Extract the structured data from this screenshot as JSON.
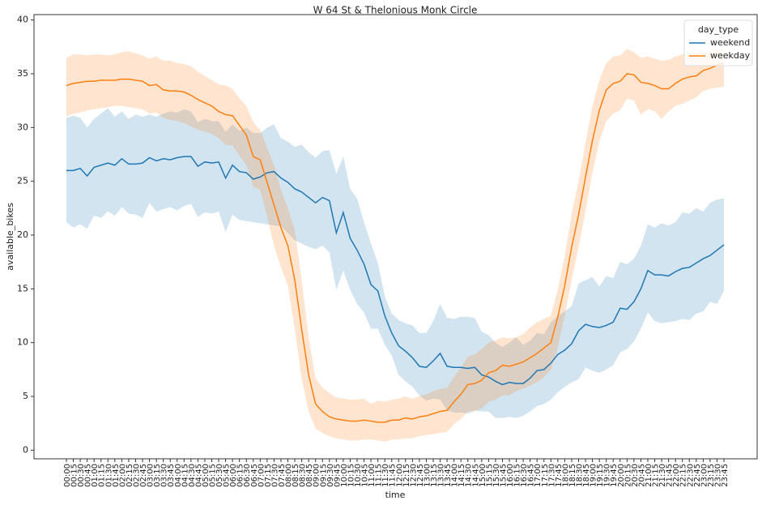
{
  "chart_data": {
    "type": "line",
    "title": "W 64 St & Thelonious Monk Circle",
    "xlabel": "time",
    "ylabel": "available_bikes",
    "legend_title": "day_type",
    "legend_position": "upper right",
    "categories": [
      "00:00",
      "00:15",
      "00:30",
      "00:45",
      "01:00",
      "01:15",
      "01:30",
      "01:45",
      "02:00",
      "02:15",
      "02:30",
      "02:45",
      "03:00",
      "03:15",
      "03:30",
      "03:45",
      "04:00",
      "04:15",
      "04:30",
      "04:45",
      "05:00",
      "05:15",
      "05:30",
      "05:45",
      "06:00",
      "06:15",
      "06:30",
      "06:45",
      "07:00",
      "07:15",
      "07:30",
      "07:45",
      "08:00",
      "08:15",
      "08:30",
      "08:45",
      "09:00",
      "09:15",
      "09:30",
      "09:45",
      "10:00",
      "10:15",
      "10:30",
      "10:45",
      "11:00",
      "11:15",
      "11:30",
      "11:45",
      "12:00",
      "12:15",
      "12:30",
      "12:45",
      "13:00",
      "13:15",
      "13:30",
      "13:45",
      "14:00",
      "14:15",
      "14:30",
      "14:45",
      "15:00",
      "15:15",
      "15:30",
      "15:45",
      "16:00",
      "16:15",
      "16:30",
      "16:45",
      "17:00",
      "17:15",
      "17:30",
      "17:45",
      "18:00",
      "18:15",
      "18:30",
      "18:45",
      "19:00",
      "19:15",
      "19:30",
      "19:45",
      "20:00",
      "20:15",
      "20:30",
      "20:45",
      "21:00",
      "21:15",
      "21:30",
      "21:45",
      "22:00",
      "22:15",
      "22:30",
      "22:45",
      "23:00",
      "23:15",
      "23:30",
      "23:45"
    ],
    "ylim": [
      -0.8,
      40.5
    ],
    "yticks": [
      0,
      5,
      10,
      15,
      20,
      25,
      30,
      35,
      40
    ],
    "series": [
      {
        "name": "weekend",
        "color": "#1f77b4",
        "values": [
          26.0,
          26.0,
          26.2,
          25.5,
          26.3,
          26.5,
          26.7,
          26.5,
          27.1,
          26.6,
          26.6,
          26.7,
          27.2,
          26.9,
          27.1,
          27.0,
          27.2,
          27.3,
          27.3,
          26.4,
          26.8,
          26.7,
          26.8,
          25.3,
          26.5,
          25.9,
          25.8,
          25.2,
          25.4,
          25.8,
          25.9,
          25.3,
          24.9,
          24.3,
          24.0,
          23.5,
          23.0,
          23.5,
          23.2,
          20.2,
          22.1,
          19.7,
          18.6,
          17.3,
          15.4,
          14.8,
          12.5,
          10.9,
          9.7,
          9.2,
          8.6,
          7.8,
          7.7,
          8.3,
          9.0,
          7.8,
          7.7,
          7.7,
          7.6,
          7.7,
          7.0,
          6.8,
          6.4,
          6.1,
          6.3,
          6.2,
          6.2,
          6.7,
          7.4,
          7.5,
          8.1,
          8.9,
          9.3,
          9.9,
          11.1,
          11.7,
          11.5,
          11.4,
          11.6,
          11.9,
          13.2,
          13.1,
          13.8,
          15.0,
          16.7,
          16.3,
          16.3,
          16.2,
          16.6,
          16.9,
          17.0,
          17.4,
          17.8,
          18.1,
          18.6,
          19.1
        ],
        "upper": [
          30.9,
          31.1,
          30.9,
          30.0,
          30.8,
          31.3,
          31.8,
          31.0,
          31.5,
          30.8,
          31.2,
          31.0,
          31.2,
          31.0,
          31.3,
          31.5,
          31.4,
          31.7,
          31.5,
          30.5,
          30.8,
          30.6,
          30.6,
          29.6,
          30.3,
          29.7,
          30.0,
          29.5,
          29.5,
          30.0,
          30.3,
          29.0,
          28.7,
          28.2,
          28.4,
          27.7,
          27.2,
          27.8,
          27.9,
          25.7,
          27.3,
          24.3,
          23.4,
          21.2,
          19.2,
          17.4,
          14.3,
          12.7,
          12.1,
          11.8,
          11.6,
          10.9,
          10.9,
          12.0,
          13.6,
          12.3,
          12.2,
          12.4,
          12.4,
          12.3,
          11.0,
          10.7,
          10.0,
          9.6,
          10.0,
          10.5,
          9.8,
          10.2,
          10.9,
          10.8,
          11.9,
          12.5,
          12.9,
          13.4,
          15.5,
          15.8,
          16.1,
          15.2,
          16.2,
          16.0,
          17.5,
          17.3,
          17.8,
          19.0,
          21.0,
          20.7,
          21.1,
          20.9,
          21.2,
          22.1,
          22.0,
          22.5,
          22.2,
          23.0,
          23.3,
          23.4
        ],
        "lower": [
          21.2,
          20.7,
          21.0,
          20.6,
          21.8,
          21.6,
          22.2,
          21.8,
          22.6,
          22.0,
          21.9,
          21.6,
          23.0,
          22.2,
          22.4,
          22.6,
          22.3,
          22.7,
          22.9,
          21.7,
          22.1,
          22.0,
          22.2,
          20.3,
          21.9,
          21.4,
          21.3,
          21.2,
          21.1,
          21.0,
          20.9,
          20.8,
          20.2,
          19.5,
          19.2,
          18.9,
          18.7,
          19.0,
          18.4,
          14.9,
          16.7,
          14.9,
          13.6,
          12.8,
          11.3,
          11.3,
          9.8,
          8.8,
          7.0,
          6.4,
          5.9,
          5.1,
          4.6,
          4.8,
          4.7,
          3.7,
          3.5,
          3.5,
          3.4,
          3.7,
          3.6,
          3.6,
          3.0,
          3.0,
          3.1,
          3.0,
          3.2,
          3.6,
          4.1,
          4.3,
          4.7,
          5.4,
          5.9,
          6.3,
          6.6,
          7.7,
          7.4,
          7.2,
          7.5,
          7.9,
          9.1,
          9.4,
          10.1,
          11.3,
          12.8,
          12.0,
          11.8,
          11.9,
          12.0,
          12.2,
          12.1,
          12.7,
          12.9,
          13.8,
          13.6,
          14.8
        ]
      },
      {
        "name": "weekday",
        "color": "#ff7f0e",
        "values": [
          33.9,
          34.1,
          34.2,
          34.3,
          34.3,
          34.4,
          34.4,
          34.4,
          34.5,
          34.5,
          34.4,
          34.3,
          33.9,
          34.0,
          33.5,
          33.4,
          33.4,
          33.3,
          33.0,
          32.6,
          32.3,
          32.0,
          31.5,
          31.2,
          31.1,
          30.2,
          29.3,
          27.3,
          27.0,
          24.9,
          22.8,
          20.7,
          19.0,
          15.8,
          11.2,
          7.0,
          4.3,
          3.6,
          3.1,
          2.9,
          2.8,
          2.7,
          2.7,
          2.8,
          2.7,
          2.6,
          2.6,
          2.8,
          2.8,
          3.0,
          2.9,
          3.1,
          3.2,
          3.4,
          3.6,
          3.7,
          4.5,
          5.2,
          6.1,
          6.2,
          6.5,
          7.2,
          7.4,
          7.9,
          7.8,
          8.0,
          8.2,
          8.6,
          9.0,
          9.5,
          10.0,
          12.4,
          15.3,
          18.9,
          21.9,
          25.4,
          28.8,
          31.6,
          33.5,
          34.1,
          34.3,
          35.0,
          34.9,
          34.2,
          34.1,
          33.9,
          33.6,
          33.6,
          34.1,
          34.5,
          34.7,
          34.8,
          35.3,
          35.5,
          35.8,
          36.0
        ],
        "upper": [
          36.5,
          36.8,
          36.8,
          36.7,
          36.8,
          36.8,
          36.7,
          36.8,
          37.0,
          37.1,
          36.9,
          36.7,
          36.4,
          36.6,
          36.2,
          36.2,
          36.0,
          35.9,
          35.7,
          35.2,
          34.8,
          34.4,
          34.0,
          33.9,
          33.6,
          32.7,
          32.0,
          30.5,
          29.8,
          28.1,
          26.5,
          24.2,
          22.5,
          20.5,
          15.8,
          10.5,
          6.7,
          5.8,
          5.3,
          4.9,
          4.8,
          4.7,
          4.7,
          4.8,
          4.3,
          4.6,
          4.5,
          4.7,
          4.8,
          5.0,
          4.8,
          5.0,
          5.2,
          5.5,
          5.7,
          5.8,
          6.8,
          7.7,
          8.7,
          8.9,
          9.4,
          10.0,
          10.2,
          10.5,
          10.4,
          10.5,
          10.8,
          11.4,
          11.9,
          12.2,
          12.5,
          15.0,
          18.0,
          22.0,
          25.0,
          28.6,
          32.0,
          34.4,
          36.0,
          36.6,
          36.7,
          37.3,
          37.0,
          36.5,
          36.6,
          36.4,
          36.2,
          36.3,
          36.6,
          36.8,
          36.9,
          37.0,
          37.1,
          37.1,
          37.2,
          37.3
        ],
        "lower": [
          31.0,
          31.3,
          31.4,
          31.6,
          31.7,
          31.8,
          31.9,
          32.0,
          32.0,
          31.9,
          31.8,
          31.7,
          31.3,
          31.4,
          30.9,
          30.7,
          30.6,
          30.4,
          30.1,
          29.8,
          29.6,
          29.4,
          29.0,
          28.4,
          28.3,
          27.4,
          26.5,
          24.5,
          24.2,
          21.7,
          19.0,
          17.0,
          15.3,
          11.2,
          6.6,
          3.6,
          2.0,
          1.6,
          1.3,
          1.1,
          1.0,
          0.9,
          0.9,
          1.0,
          1.0,
          0.9,
          0.8,
          1.0,
          1.0,
          1.1,
          1.1,
          1.3,
          1.4,
          1.5,
          1.6,
          1.7,
          2.4,
          2.9,
          3.6,
          3.6,
          3.9,
          4.5,
          4.7,
          5.1,
          5.1,
          5.5,
          5.7,
          6.0,
          6.3,
          6.8,
          7.5,
          9.6,
          12.5,
          15.8,
          18.9,
          22.2,
          25.8,
          28.7,
          30.6,
          31.3,
          31.6,
          32.7,
          32.5,
          31.2,
          31.7,
          31.5,
          30.8,
          31.5,
          32.0,
          32.2,
          32.5,
          32.8,
          33.4,
          33.6,
          33.7,
          33.8
        ]
      }
    ]
  }
}
